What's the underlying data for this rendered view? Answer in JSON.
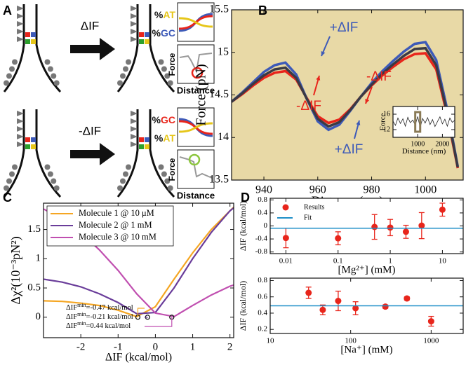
{
  "diagram": {
    "panel": "A",
    "rows": [
      {
        "arrow_label": "ΔIF",
        "top_label": [
          "%",
          "AT"
        ],
        "bottom_label": [
          "%",
          "GC"
        ],
        "force_label": "Force",
        "distance_label": "Distance"
      },
      {
        "arrow_label": "-ΔIF",
        "top_label": [
          "%",
          "GC"
        ],
        "bottom_label": [
          "%",
          "AT"
        ],
        "force_label": "Force",
        "distance_label": "Distance"
      }
    ]
  },
  "chart_data": [
    {
      "type": "line",
      "panel": "B",
      "xlabel": "Distance (nm)",
      "ylabel": "Force (pN)",
      "background": "#e8d9a6",
      "x": [
        928,
        932,
        936,
        940,
        944,
        948,
        952,
        956,
        960,
        964,
        968,
        972,
        976,
        980,
        984,
        988,
        992,
        996,
        1000,
        1004,
        1008,
        1012
      ],
      "series": [
        {
          "color": "#e8251b",
          "values": [
            14.42,
            14.51,
            14.61,
            14.7,
            14.76,
            14.78,
            14.68,
            14.46,
            14.25,
            14.17,
            14.21,
            14.33,
            14.48,
            14.61,
            14.73,
            14.83,
            14.92,
            14.98,
            14.99,
            14.8,
            14.27,
            13.64
          ]
        },
        {
          "color": "#3d5ab8",
          "values": [
            14.42,
            14.53,
            14.65,
            14.77,
            14.85,
            14.88,
            14.74,
            14.45,
            14.19,
            14.09,
            14.15,
            14.31,
            14.48,
            14.64,
            14.78,
            14.9,
            15.01,
            15.1,
            15.12,
            14.91,
            14.34,
            13.66
          ]
        },
        {
          "color": "#3a3a44",
          "values": [
            14.42,
            14.52,
            14.63,
            14.73,
            14.8,
            14.82,
            14.7,
            14.45,
            14.22,
            14.13,
            14.18,
            14.32,
            14.48,
            14.62,
            14.75,
            14.86,
            14.96,
            15.04,
            15.05,
            14.85,
            14.3,
            13.65
          ]
        }
      ],
      "xlim": [
        928,
        1014
      ],
      "ylim": [
        13.5,
        15.5
      ],
      "xticks": [
        940,
        960,
        980,
        1000
      ],
      "yticks": [
        13.5,
        14,
        14.5,
        15,
        15.5
      ],
      "annotations": [
        {
          "text": "+ΔIF",
          "color": "#3d5ab8"
        },
        {
          "text": "-ΔIF",
          "color": "#e8251b"
        },
        {
          "text": "-ΔIF",
          "color": "#e8251b"
        },
        {
          "text": "+ΔIF",
          "color": "#3d5ab8"
        }
      ]
    },
    {
      "type": "line",
      "xlabel": "Distance (nm)",
      "ylabel": "Force",
      "x": [
        0,
        100,
        200,
        300,
        400,
        500,
        600,
        700,
        800,
        900,
        1000,
        1100,
        1200,
        1300,
        1400,
        1500,
        1600,
        1700,
        1800,
        1900,
        2000,
        2100,
        2200,
        2300,
        2400,
        2500
      ],
      "series": [
        {
          "color": "#222222",
          "values": [
            14.2,
            13.1,
            15.0,
            13.6,
            14.8,
            12.9,
            15.2,
            13.8,
            14.5,
            13.2,
            15.4,
            12.6,
            14.9,
            13.7,
            15.1,
            13.3,
            14.6,
            12.8,
            14.1,
            15.3,
            13.5,
            14.7,
            12.9,
            15.0,
            13.9,
            14.4
          ]
        }
      ],
      "xlim": [
        0,
        2500
      ],
      "ylim": [
        10,
        18
      ],
      "xticks": [
        1000,
        2000
      ],
      "yticks": [
        12,
        16
      ]
    },
    {
      "type": "line",
      "panel": "C",
      "xlabel": "ΔIF (kcal/mol)",
      "ylabel": "Δχ²(10⁻³pN²)",
      "legend": "upper left",
      "x": [
        -3,
        -2.5,
        -2,
        -1.5,
        -1,
        -0.5,
        0,
        0.5,
        1,
        1.5,
        2,
        2.1
      ],
      "series": [
        {
          "name": "Molecule 1 @ 10 μM",
          "color": "#f5a623",
          "values": [
            0.28,
            0.27,
            0.24,
            0.2,
            0.12,
            0.01,
            0.18,
            0.65,
            1.1,
            1.5,
            1.82,
            1.88
          ],
          "min_x": -0.47,
          "min_y": 0
        },
        {
          "name": "Molecule 2 @ 1 mM",
          "color": "#6a3d9a",
          "values": [
            0.65,
            0.6,
            0.52,
            0.4,
            0.25,
            0.06,
            0.08,
            0.5,
            1.0,
            1.45,
            1.82,
            1.87
          ],
          "min_x": -0.21,
          "min_y": 0
        },
        {
          "name": "Molecule 3 @ 10 mM",
          "color": "#c04fb0",
          "values": [
            1.85,
            1.68,
            1.45,
            1.15,
            0.8,
            0.4,
            0.07,
            0.01,
            0.2,
            0.38,
            0.53,
            0.55
          ],
          "min_x": 0.44,
          "min_y": 0
        }
      ],
      "xlim": [
        -3,
        2.1
      ],
      "ylim": [
        -0.35,
        1.95
      ],
      "xticks": [
        -2,
        -1,
        0,
        1,
        2
      ],
      "yticks": [
        0,
        0.5,
        1,
        1.5
      ],
      "annotations": [
        {
          "text": "ΔIF",
          "sub": "min",
          "rest": "=-0.47 kcal/mol"
        },
        {
          "text": "ΔIF",
          "sub": "min",
          "rest": "=-0.21 kcal/mol"
        },
        {
          "text": "ΔIF",
          "sub": "min",
          "rest": "=0.44 kcal/mol"
        }
      ]
    },
    {
      "type": "scatter",
      "panel": "D",
      "xlabel": "[Mg²⁺] (mM)",
      "ylabel": "ΔIF (kcal/mol)",
      "xscale": "log",
      "legend": "upper left",
      "x": [
        0.01,
        0.1,
        0.5,
        1,
        2,
        4,
        10
      ],
      "series": [
        {
          "name": "Results",
          "color": "#e8251b",
          "values": [
            -0.37,
            -0.38,
            -0.03,
            -0.05,
            -0.18,
            0.01,
            0.5
          ],
          "errors": [
            0.3,
            0.2,
            0.38,
            0.25,
            0.2,
            0.4,
            0.2
          ]
        },
        {
          "name": "Fit",
          "color": "#1f8fc8",
          "value": -0.07
        }
      ],
      "xlim": [
        0.005,
        25
      ],
      "ylim": [
        -0.85,
        0.85
      ],
      "xticks": [
        0.01,
        0.1,
        1,
        10
      ],
      "yticks": [
        -0.8,
        -0.4,
        0,
        0.4,
        0.8
      ]
    },
    {
      "type": "scatter",
      "xlabel": "[Na⁺] (mM)",
      "ylabel": "ΔIF (kcal/mol)",
      "xscale": "log",
      "x": [
        30,
        45,
        70,
        115,
        270,
        500,
        1000
      ],
      "series": [
        {
          "color": "#e8251b",
          "values": [
            0.65,
            0.44,
            0.55,
            0.46,
            0.48,
            0.58,
            0.3
          ],
          "errors": [
            0.07,
            0.06,
            0.12,
            0.08,
            0.02,
            0.02,
            0.06
          ]
        },
        {
          "color": "#1f8fc8",
          "value": 0.49
        }
      ],
      "xlim": [
        10,
        2500
      ],
      "ylim": [
        0.15,
        0.83
      ],
      "xticks": [
        10,
        100,
        1000
      ],
      "yticks": [
        0.2,
        0.4,
        0.6,
        0.8
      ]
    }
  ]
}
